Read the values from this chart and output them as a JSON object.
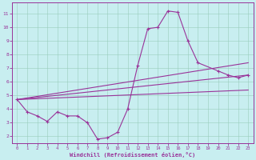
{
  "xlabel": "Windchill (Refroidissement éolien,°C)",
  "background_color": "#c8eef0",
  "grid_color": "#99ccbb",
  "line_color": "#993399",
  "xlim": [
    -0.5,
    23.5
  ],
  "ylim": [
    1.5,
    11.8
  ],
  "xticks": [
    0,
    1,
    2,
    3,
    4,
    5,
    6,
    7,
    8,
    9,
    10,
    11,
    12,
    13,
    14,
    15,
    16,
    17,
    18,
    19,
    20,
    21,
    22,
    23
  ],
  "yticks": [
    2,
    3,
    4,
    5,
    6,
    7,
    8,
    9,
    10,
    11
  ],
  "main_x": [
    0,
    1,
    2,
    3,
    4,
    5,
    6,
    7,
    8,
    9,
    10,
    11,
    12,
    13,
    14,
    15,
    16,
    17,
    18,
    20,
    21,
    22,
    23
  ],
  "main_y": [
    4.7,
    3.8,
    3.5,
    3.1,
    3.8,
    3.5,
    3.5,
    3.0,
    1.8,
    1.9,
    2.3,
    4.0,
    7.2,
    9.9,
    10.0,
    11.2,
    11.1,
    9.0,
    7.4,
    6.8,
    6.5,
    6.3,
    6.5
  ],
  "straight_lines": [
    [
      [
        0,
        23
      ],
      [
        4.7,
        7.4
      ]
    ],
    [
      [
        0,
        23
      ],
      [
        4.7,
        6.5
      ]
    ],
    [
      [
        0,
        23
      ],
      [
        4.7,
        5.4
      ]
    ]
  ]
}
